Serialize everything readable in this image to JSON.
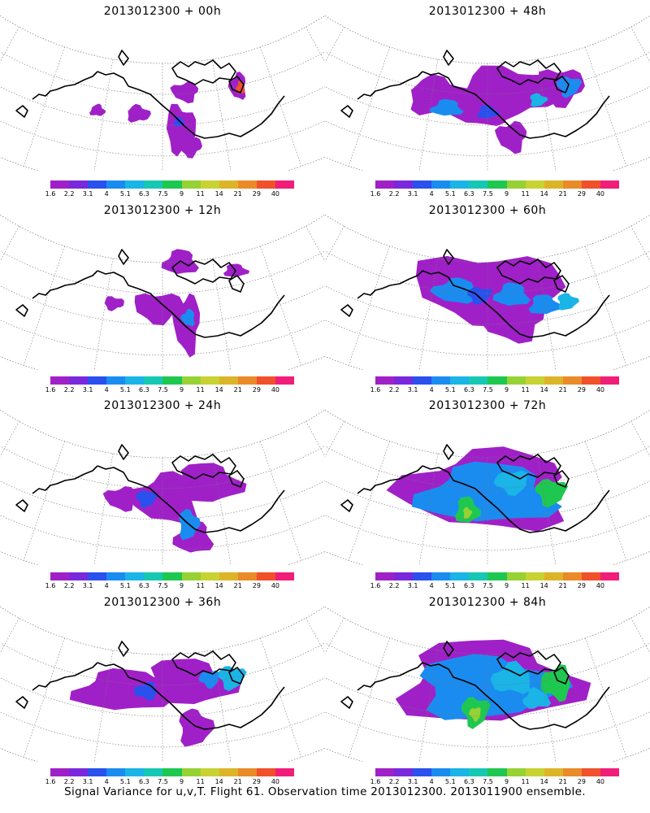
{
  "panels": [
    {
      "title": "2013012300 + 00h"
    },
    {
      "title": "2013012300 + 48h"
    },
    {
      "title": "2013012300 + 12h"
    },
    {
      "title": "2013012300 + 60h"
    },
    {
      "title": "2013012300 + 24h"
    },
    {
      "title": "2013012300 + 72h"
    },
    {
      "title": "2013012300 + 36h"
    },
    {
      "title": "2013012300 + 84h"
    }
  ],
  "colorbar": {
    "labels": [
      "1.6",
      "2.2",
      "3.1",
      "4",
      "5.1",
      "6.3",
      "7.5",
      "9",
      "11",
      "14",
      "21",
      "29",
      "40"
    ],
    "colors": [
      "#a020c8",
      "#7a28dc",
      "#2a50ee",
      "#1a8cf0",
      "#1ab4e6",
      "#16c8b4",
      "#1ec850",
      "#96d234",
      "#c8d232",
      "#dcb428",
      "#eb8a28",
      "#f0502a",
      "#f01e78"
    ]
  },
  "footer": "Signal Variance for u,v,T. Flight 61. Observation time 2013012300. 2013011900 ensemble."
}
